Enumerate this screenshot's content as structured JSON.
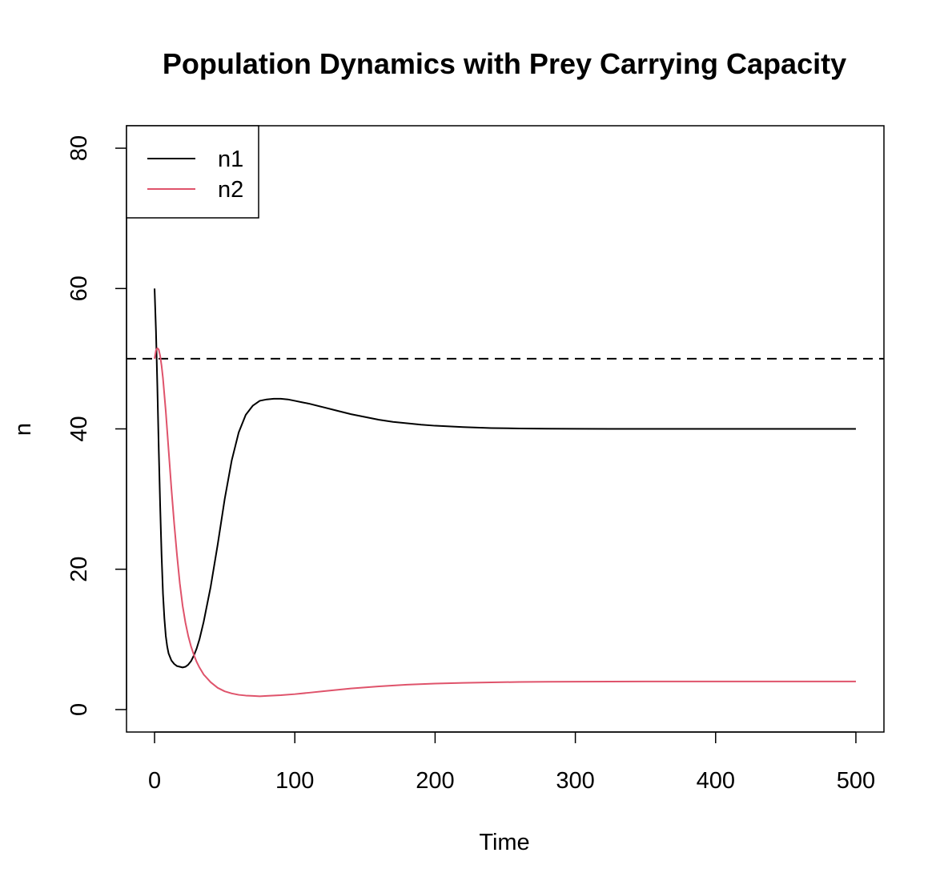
{
  "chart_data": {
    "type": "line",
    "title": "Population Dynamics with Prey Carrying Capacity",
    "xlabel": "Time",
    "ylabel": "n",
    "xlim": [
      -20,
      520
    ],
    "ylim": [
      -3.2,
      83.2
    ],
    "x_ticks": [
      0,
      100,
      200,
      300,
      400,
      500
    ],
    "y_ticks": [
      0,
      20,
      40,
      60,
      80
    ],
    "grid": false,
    "legend": {
      "position": "top-left",
      "entries": [
        {
          "label": "n1",
          "color": "#000000"
        },
        {
          "label": "n2",
          "color": "#DF536B"
        }
      ]
    },
    "reference_line": {
      "y": 50,
      "style": "dashed",
      "color": "#000000"
    },
    "series": [
      {
        "name": "n1",
        "color": "#000000",
        "x": [
          0,
          1,
          2,
          3,
          4,
          5,
          6,
          7,
          8,
          9,
          10,
          12,
          14,
          16,
          18,
          20,
          22,
          24,
          26,
          28,
          30,
          32,
          35,
          40,
          45,
          50,
          55,
          60,
          65,
          70,
          75,
          80,
          85,
          90,
          95,
          100,
          105,
          110,
          120,
          130,
          140,
          150,
          160,
          170,
          180,
          190,
          200,
          220,
          240,
          260,
          280,
          300,
          350,
          400,
          450,
          500
        ],
        "y": [
          60,
          54,
          46,
          37,
          29,
          22,
          16.5,
          13,
          10.5,
          9,
          8,
          7,
          6.5,
          6.2,
          6.1,
          6.0,
          6.1,
          6.4,
          6.9,
          7.7,
          8.7,
          10.0,
          12.5,
          17.5,
          23.5,
          30.0,
          35.5,
          39.5,
          42.0,
          43.3,
          44.0,
          44.2,
          44.3,
          44.3,
          44.2,
          44.0,
          43.8,
          43.6,
          43.1,
          42.6,
          42.1,
          41.7,
          41.3,
          41.0,
          40.8,
          40.6,
          40.45,
          40.25,
          40.12,
          40.06,
          40.03,
          40.01,
          40.0,
          40.0,
          40.0,
          40.0
        ]
      },
      {
        "name": "n2",
        "color": "#DF536B",
        "x": [
          0,
          1,
          2,
          3,
          4,
          5,
          6,
          8,
          10,
          12,
          14,
          16,
          18,
          20,
          22,
          24,
          26,
          28,
          30,
          32,
          35,
          40,
          45,
          50,
          55,
          60,
          65,
          70,
          75,
          80,
          90,
          100,
          110,
          120,
          140,
          160,
          180,
          200,
          220,
          240,
          260,
          280,
          300,
          350,
          400,
          450,
          500
        ],
        "y": [
          50,
          51.2,
          51.5,
          51.3,
          50.4,
          49.0,
          47.2,
          42.5,
          37.0,
          31.5,
          26.5,
          22.0,
          18.0,
          14.8,
          12.4,
          10.5,
          9.0,
          7.8,
          6.8,
          6.0,
          5.0,
          3.9,
          3.1,
          2.6,
          2.3,
          2.1,
          2.0,
          1.95,
          1.9,
          1.95,
          2.05,
          2.2,
          2.4,
          2.6,
          3.0,
          3.3,
          3.55,
          3.7,
          3.8,
          3.88,
          3.93,
          3.96,
          3.98,
          4.0,
          4.0,
          4.0,
          4.0
        ]
      }
    ]
  }
}
